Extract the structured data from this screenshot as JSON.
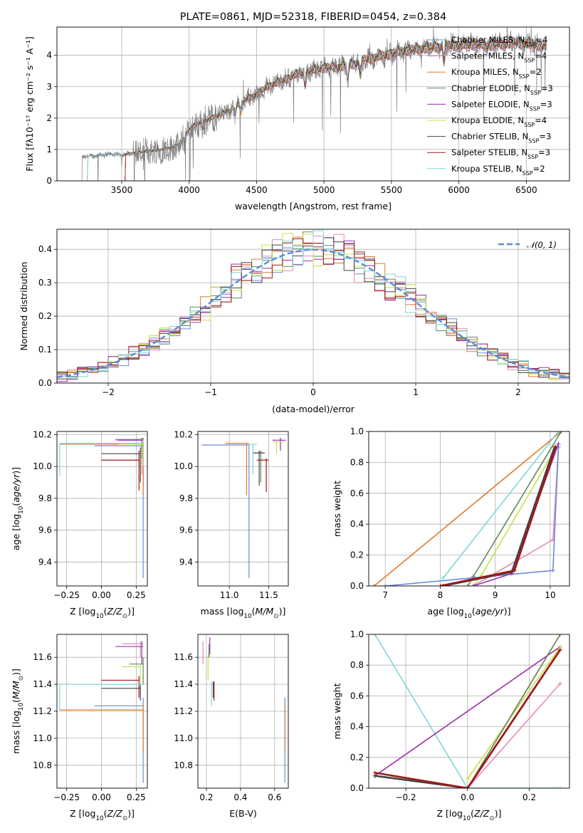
{
  "colors": {
    "Chabrier MILES": "#6b8bd6",
    "Salpeter MILES": "#e58bb8",
    "Kroupa MILES": "#e07b2c",
    "Chabrier ELODIE": "#5f8a5a",
    "Salpeter ELODIE": "#9932a8",
    "Kroupa ELODIE": "#c5e04a",
    "Chabrier STELIB": "#444444",
    "Salpeter STELIB": "#a01818",
    "Kroupa STELIB": "#7fd6d8",
    "observed": "#808080",
    "normal": "#5b8bd6"
  },
  "chart_data": [
    {
      "id": "spectrum",
      "type": "line",
      "title": "PLATE=0861, MJD=52318, FIBERID=0454, z=0.384",
      "xlabel": "wavelength [Angstrom, rest frame]",
      "ylabel": "Flux [fλ10⁻¹⁷ erg cm⁻² s⁻¹ A⁻¹]",
      "xlim": [
        3020,
        6820
      ],
      "ylim": [
        0,
        4.9
      ],
      "xticks": [
        3500,
        4000,
        4500,
        5000,
        5500,
        6000,
        6500
      ],
      "yticks": [
        0,
        1,
        2,
        3,
        4
      ],
      "legend_position": "upper-right",
      "legend": [
        "Chabrier MILES, N_SSP=4",
        "Salpeter MILES, N_SSP=4",
        "Kroupa MILES, N_SSP=2",
        "Chabrier ELODIE, N_SSP=3",
        "Salpeter ELODIE, N_SSP=3",
        "Kroupa ELODIE, N_SSP=4",
        "Chabrier STELIB, N_SSP=3",
        "Salpeter STELIB, N_SSP=3",
        "Kroupa STELIB, N_SSP=2"
      ],
      "continuum": {
        "x": [
          3200,
          3300,
          3400,
          3500,
          3600,
          3700,
          3800,
          3900,
          3950,
          4000,
          4100,
          4200,
          4300,
          4400,
          4500,
          4600,
          4700,
          4800,
          4900,
          5000,
          5100,
          5200,
          5300,
          5400,
          5500,
          5600,
          5700,
          5800,
          5900,
          6000,
          6100,
          6200,
          6300,
          6400,
          6500,
          6600,
          6650
        ],
        "y": [
          0.75,
          0.8,
          0.85,
          0.82,
          0.9,
          0.95,
          1.0,
          1.1,
          1.3,
          1.65,
          1.9,
          2.05,
          2.3,
          2.55,
          2.75,
          3.05,
          3.2,
          3.4,
          3.5,
          3.6,
          3.62,
          3.7,
          3.85,
          3.95,
          4.05,
          4.15,
          4.2,
          4.25,
          4.3,
          4.32,
          4.35,
          4.32,
          4.35,
          4.4,
          4.38,
          4.32,
          4.3
        ]
      },
      "x_start_observed": 3200,
      "x_start_models": 3520,
      "x_end": 6650
    },
    {
      "id": "residuals",
      "type": "histogram",
      "xlabel": "(data-model)/error",
      "ylabel": "Normed distribution",
      "xlim": [
        -2.5,
        2.5
      ],
      "ylim": [
        0,
        0.46
      ],
      "xticks": [
        -2,
        -1,
        0,
        1,
        2
      ],
      "yticks": [
        0.0,
        0.1,
        0.2,
        0.3,
        0.4
      ],
      "legend_position": "upper-right",
      "legend": [
        "𝒩(0, 1)"
      ],
      "bin_width": 0.1
    },
    {
      "id": "age-Z",
      "type": "error-bars",
      "xlabel": "Z [log₁₀(Z/Z⊙)]",
      "ylabel": "age  [log₁₀(age/yr)]",
      "xlim": [
        -0.32,
        0.33
      ],
      "ylim": [
        9.25,
        10.22
      ],
      "xticks": [
        -0.25,
        0.0,
        0.25
      ],
      "yticks": [
        9.4,
        9.6,
        9.8,
        10.0,
        10.2
      ],
      "bars": [
        {
          "model": "Chabrier MILES",
          "x": [
            -0.05,
            0.3
          ],
          "y": 10.13,
          "vy": [
            9.3,
            10.16
          ],
          "vx": 0.3
        },
        {
          "model": "Salpeter MILES",
          "x": [
            0.1,
            0.3
          ],
          "y": 10.165,
          "vy": [
            9.95,
            10.18
          ],
          "vx": 0.29
        },
        {
          "model": "Kroupa MILES",
          "x": [
            -0.3,
            0.3
          ],
          "y": 10.14,
          "vy": [
            9.82,
            10.16
          ],
          "vx": 0.3
        },
        {
          "model": "Chabrier ELODIE",
          "x": [
            0.1,
            0.3
          ],
          "y": 10.17,
          "vy": [
            10.05,
            10.18
          ],
          "vx": 0.29
        },
        {
          "model": "Salpeter ELODIE",
          "x": [
            0.12,
            0.3
          ],
          "y": 10.165,
          "vy": [
            10.0,
            10.18
          ],
          "vx": 0.3
        },
        {
          "model": "Kroupa ELODIE",
          "x": [
            0.12,
            0.3
          ],
          "y": 10.14,
          "vy": [
            10.0,
            10.17
          ],
          "vx": 0.3
        },
        {
          "model": "Chabrier STELIB",
          "x": [
            0.0,
            0.28
          ],
          "y": 10.08,
          "vy": [
            9.9,
            10.12
          ],
          "vx": 0.28
        },
        {
          "model": "Salpeter STELIB",
          "x": [
            0.0,
            0.27
          ],
          "y": 10.04,
          "vy": [
            9.85,
            10.1
          ],
          "vx": 0.27
        },
        {
          "model": "Kroupa STELIB",
          "x": [
            -0.3,
            0.3
          ],
          "y": 10.145,
          "vy": [
            9.94,
            10.145
          ],
          "vx": -0.3
        }
      ]
    },
    {
      "id": "age-mass",
      "type": "error-bars",
      "xlabel": "mass [log₁₀(M/M⊙)]",
      "xlim": [
        10.6,
        11.75
      ],
      "ylim": [
        9.25,
        10.22
      ],
      "xticks": [
        11.0,
        11.5
      ],
      "yticks": [
        9.4,
        9.6,
        9.8,
        10.0,
        10.2
      ],
      "bars": [
        {
          "model": "Chabrier MILES",
          "x": [
            10.65,
            11.25
          ],
          "y": 10.135,
          "vy": [
            9.3,
            10.135
          ],
          "vx": 11.25
        },
        {
          "model": "Salpeter MILES",
          "x": [
            11.55,
            11.7
          ],
          "y": 10.165,
          "vy": [
            10.12,
            10.18
          ],
          "vx": 11.65
        },
        {
          "model": "Kroupa MILES",
          "x": [
            10.95,
            11.25
          ],
          "y": 10.145,
          "vy": [
            9.82,
            10.145
          ],
          "vx": 11.22
        },
        {
          "model": "Chabrier ELODIE",
          "x": [
            11.3,
            11.45
          ],
          "y": 10.085,
          "vy": [
            9.9,
            10.1
          ],
          "vx": 11.4
        },
        {
          "model": "Salpeter ELODIE",
          "x": [
            11.55,
            11.72
          ],
          "y": 10.165,
          "vy": [
            10.1,
            10.18
          ],
          "vx": 11.65
        },
        {
          "model": "Kroupa ELODIE",
          "x": [
            11.55,
            11.7
          ],
          "y": 10.155,
          "vy": [
            10.08,
            10.17
          ],
          "vx": 11.6
        },
        {
          "model": "Chabrier STELIB",
          "x": [
            11.3,
            11.45
          ],
          "y": 10.085,
          "vy": [
            9.88,
            10.1
          ],
          "vx": 11.38
        },
        {
          "model": "Salpeter STELIB",
          "x": [
            11.35,
            11.5
          ],
          "y": 10.04,
          "vy": [
            9.84,
            10.05
          ],
          "vx": 11.47
        },
        {
          "model": "Kroupa STELIB",
          "x": [
            11.25,
            11.35
          ],
          "y": 10.14,
          "vy": [
            9.95,
            10.14
          ],
          "vx": 11.3
        }
      ]
    },
    {
      "id": "mw-age",
      "type": "line",
      "xlabel": "age  [log₁₀(age/yr)]",
      "ylabel": "mass weight",
      "xlim": [
        6.7,
        10.35
      ],
      "ylim": [
        0,
        1
      ],
      "xticks": [
        7,
        8,
        9,
        10
      ],
      "yticks": [
        0.0,
        0.2,
        0.4,
        0.6,
        0.8,
        1.0
      ],
      "series": [
        {
          "model": "Kroupa MILES",
          "x": [
            6.8,
            10.2
          ],
          "y": [
            0.0,
            1.0
          ]
        },
        {
          "model": "Kroupa STELIB",
          "x": [
            8.05,
            10.15
          ],
          "y": [
            0.05,
            1.0
          ]
        },
        {
          "model": "Chabrier ELODIE",
          "x": [
            8.5,
            8.6,
            10.2
          ],
          "y": [
            0.0,
            0.06,
            1.0
          ]
        },
        {
          "model": "Kroupa ELODIE",
          "x": [
            8.6,
            8.75,
            10.15
          ],
          "y": [
            0.0,
            0.07,
            0.92
          ]
        },
        {
          "model": "Salpeter MILES",
          "x": [
            8.6,
            10.05,
            10.15
          ],
          "y": [
            0.0,
            0.3,
            0.9
          ]
        },
        {
          "model": "Chabrier MILES",
          "x": [
            7.0,
            10.05,
            10.15
          ],
          "y": [
            0.0,
            0.1,
            0.9
          ]
        },
        {
          "model": "Salpeter ELODIE",
          "x": [
            8.6,
            9.3,
            10.15
          ],
          "y": [
            0.0,
            0.08,
            0.92
          ]
        },
        {
          "model": "Chabrier STELIB",
          "x": [
            8.05,
            9.3,
            10.08
          ],
          "y": [
            0.0,
            0.09,
            0.9
          ]
        },
        {
          "model": "Salpeter STELIB",
          "x": [
            8.0,
            9.35,
            10.1
          ],
          "y": [
            0.0,
            0.1,
            0.9
          ]
        }
      ]
    },
    {
      "id": "mass-Z",
      "type": "error-bars",
      "xlabel": "Z [log₁₀(Z/Z⊙)]",
      "ylabel": "mass [log₁₀(M/M⊙)]",
      "xlim": [
        -0.32,
        0.33
      ],
      "ylim": [
        10.63,
        11.77
      ],
      "xticks": [
        -0.25,
        0.0,
        0.25
      ],
      "yticks": [
        10.8,
        11.0,
        11.2,
        11.4,
        11.6
      ],
      "bars": [
        {
          "model": "Chabrier MILES",
          "x": [
            -0.05,
            0.3
          ],
          "y": 11.24,
          "vy": [
            10.67,
            11.3
          ],
          "vx": 0.3
        },
        {
          "model": "Salpeter MILES",
          "x": [
            0.15,
            0.3
          ],
          "y": 11.7,
          "vy": [
            11.6,
            11.72
          ],
          "vx": 0.28
        },
        {
          "model": "Kroupa MILES",
          "x": [
            -0.3,
            0.3
          ],
          "y": 11.21,
          "vy": [
            10.9,
            11.25
          ],
          "vx": 0.3
        },
        {
          "model": "Chabrier ELODIE",
          "x": [
            0.2,
            0.3
          ],
          "y": 11.55,
          "vy": [
            11.4,
            11.6
          ],
          "vx": 0.3
        },
        {
          "model": "Salpeter ELODIE",
          "x": [
            0.1,
            0.3
          ],
          "y": 11.68,
          "vy": [
            11.55,
            11.72
          ],
          "vx": 0.29
        },
        {
          "model": "Kroupa ELODIE",
          "x": [
            0.15,
            0.28
          ],
          "y": 11.53,
          "vy": [
            11.4,
            11.55
          ],
          "vx": 0.28
        },
        {
          "model": "Chabrier STELIB",
          "x": [
            0.0,
            0.28
          ],
          "y": 11.37,
          "vy": [
            11.28,
            11.4
          ],
          "vx": 0.28
        },
        {
          "model": "Salpeter STELIB",
          "x": [
            0.0,
            0.27
          ],
          "y": 11.43,
          "vy": [
            11.3,
            11.46
          ],
          "vx": 0.27
        },
        {
          "model": "Kroupa STELIB",
          "x": [
            -0.3,
            0.3
          ],
          "y": 11.4,
          "vy": [
            11.21,
            11.4
          ],
          "vx": -0.3
        }
      ]
    },
    {
      "id": "mass-EBV",
      "type": "error-bars",
      "xlabel": "E(B-V)",
      "xlim": [
        0.15,
        0.68
      ],
      "ylim": [
        10.63,
        11.77
      ],
      "xticks": [
        0.2,
        0.4,
        0.6
      ],
      "yticks": [
        10.8,
        11.0,
        11.2,
        11.4,
        11.6
      ],
      "bars": [
        {
          "model": "Chabrier MILES",
          "vx": 0.66,
          "vy": [
            10.67,
            11.3
          ]
        },
        {
          "model": "Salpeter MILES",
          "vx": 0.18,
          "vy": [
            11.55,
            11.72
          ]
        },
        {
          "model": "Kroupa MILES",
          "vx": 0.66,
          "vy": [
            10.9,
            11.25
          ]
        },
        {
          "model": "Chabrier ELODIE",
          "vx": 0.215,
          "vy": [
            11.6,
            11.7
          ]
        },
        {
          "model": "Salpeter ELODIE",
          "vx": 0.22,
          "vy": [
            11.62,
            11.75
          ]
        },
        {
          "model": "Kroupa ELODIE",
          "vx": 0.21,
          "vy": [
            11.43,
            11.62
          ]
        },
        {
          "model": "Chabrier STELIB",
          "vx": 0.24,
          "vy": [
            11.3,
            11.42
          ]
        },
        {
          "model": "Salpeter STELIB",
          "vx": 0.245,
          "vy": [
            11.28,
            11.42
          ]
        },
        {
          "model": "Kroupa STELIB",
          "vx": 0.23,
          "vy": [
            11.24,
            11.42
          ]
        }
      ]
    },
    {
      "id": "mw-Z",
      "type": "line",
      "xlabel": "Z [log₁₀(Z/Z⊙)]",
      "ylabel": "mass weight",
      "xlim": [
        -0.32,
        0.33
      ],
      "ylim": [
        0,
        1
      ],
      "xticks": [
        -0.2,
        0.0,
        0.2
      ],
      "yticks": [
        0.0,
        0.2,
        0.4,
        0.6,
        0.8,
        1.0
      ],
      "series": [
        {
          "model": "Kroupa STELIB",
          "x": [
            -0.3,
            0.0,
            0.3
          ],
          "y": [
            1.0,
            0.0,
            0.0
          ]
        },
        {
          "model": "Salpeter ELODIE",
          "x": [
            -0.3,
            0.3
          ],
          "y": [
            0.08,
            0.92
          ]
        },
        {
          "model": "Kroupa ELODIE",
          "x": [
            0.0,
            0.3
          ],
          "y": [
            0.06,
            0.92
          ]
        },
        {
          "model": "Salpeter MILES",
          "x": [
            0.0,
            0.3
          ],
          "y": [
            0.0,
            0.68
          ]
        },
        {
          "model": "Kroupa MILES",
          "x": [
            0.0,
            0.3
          ],
          "y": [
            0.0,
            1.0
          ]
        },
        {
          "model": "Chabrier ELODIE",
          "x": [
            0.0,
            0.3
          ],
          "y": [
            0.0,
            1.0
          ]
        },
        {
          "model": "Chabrier STELIB",
          "x": [
            -0.3,
            0.0,
            0.3
          ],
          "y": [
            0.08,
            0.0,
            0.9
          ]
        },
        {
          "model": "Salpeter STELIB",
          "x": [
            -0.3,
            0.0,
            0.3
          ],
          "y": [
            0.1,
            0.0,
            0.9
          ]
        }
      ]
    }
  ]
}
